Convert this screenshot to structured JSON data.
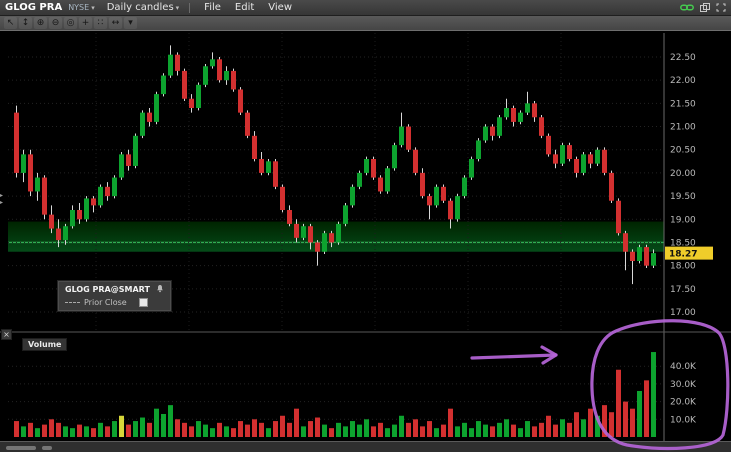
{
  "header": {
    "symbol": "GLOG PRA",
    "exchange": "NYSE",
    "period": "Daily candles",
    "menus": [
      "File",
      "Edit",
      "View"
    ],
    "window_icons": [
      "link-icon",
      "popout-icon",
      "expand-icon"
    ]
  },
  "toolbar": {
    "tools": [
      {
        "name": "cursor-tool-icon",
        "glyph": "↖"
      },
      {
        "name": "pan-tool-icon",
        "glyph": "↕"
      },
      {
        "name": "zoom-in-icon",
        "glyph": "⊕"
      },
      {
        "name": "zoom-out-icon",
        "glyph": "⊖"
      },
      {
        "name": "target-icon",
        "glyph": "◎"
      },
      {
        "name": "crosshair-icon",
        "glyph": "+"
      },
      {
        "name": "grid-dots-icon",
        "glyph": "∷"
      },
      {
        "name": "measure-icon",
        "glyph": "↔"
      },
      {
        "name": "tools-dropdown-icon",
        "glyph": "▾"
      }
    ]
  },
  "legend": {
    "title": "GLOG PRA@SMART",
    "prior_close_label": "Prior Close"
  },
  "volume_pane": {
    "label": "Volume"
  },
  "price_axis": {
    "last_price": "18.27"
  },
  "chart_data": {
    "type": "candlestick",
    "title": "GLOG PRA@SMART Daily candles",
    "price_ticks": [
      17.0,
      17.5,
      18.0,
      18.5,
      19.0,
      19.5,
      20.0,
      20.5,
      21.0,
      21.5,
      22.0,
      22.5
    ],
    "price_tick_labels": [
      "17.00",
      "17.50",
      "18.00",
      "18.50",
      "19.00",
      "19.50",
      "20.00",
      "20.50",
      "21.00",
      "21.50",
      "22.00",
      "22.50"
    ],
    "ylim": [
      16.8,
      23.0
    ],
    "volume_ticks": [
      10000,
      20000,
      30000,
      40000
    ],
    "volume_tick_labels": [
      "10.0K",
      "20.0K",
      "30.0K",
      "40.0K"
    ],
    "volume_ylim": [
      0,
      52000
    ],
    "last_price": 18.27,
    "highlight_band": {
      "from": 18.3,
      "to": 18.95,
      "line": 18.5
    },
    "volume_highlight_index": 15,
    "colors": {
      "up": "#0da32f",
      "down": "#d33030",
      "wick": "#d8d8d8",
      "band_line": "#3fd36a",
      "volume_highlight": "#d6d63a",
      "annotation": "#b565d8",
      "last_price_bg": "#f0cd2a"
    },
    "candles": [
      [
        21.3,
        21.45,
        19.9,
        20.0
      ],
      [
        20.0,
        20.5,
        19.8,
        20.4
      ],
      [
        20.4,
        20.5,
        19.5,
        19.6
      ],
      [
        19.6,
        20.0,
        19.4,
        19.9
      ],
      [
        19.9,
        19.95,
        19.0,
        19.1
      ],
      [
        19.1,
        19.3,
        18.7,
        18.8
      ],
      [
        18.8,
        19.0,
        18.4,
        18.55
      ],
      [
        18.55,
        18.9,
        18.45,
        18.85
      ],
      [
        18.85,
        19.3,
        18.8,
        19.2
      ],
      [
        19.2,
        19.35,
        18.9,
        19.0
      ],
      [
        19.0,
        19.5,
        18.95,
        19.45
      ],
      [
        19.45,
        19.5,
        19.15,
        19.3
      ],
      [
        19.3,
        19.75,
        19.25,
        19.7
      ],
      [
        19.7,
        19.8,
        19.4,
        19.5
      ],
      [
        19.5,
        19.95,
        19.45,
        19.9
      ],
      [
        19.9,
        20.45,
        19.85,
        20.4
      ],
      [
        20.4,
        20.5,
        20.05,
        20.15
      ],
      [
        20.15,
        20.85,
        20.1,
        20.8
      ],
      [
        20.8,
        21.35,
        20.75,
        21.3
      ],
      [
        21.3,
        21.4,
        21.0,
        21.1
      ],
      [
        21.1,
        21.75,
        21.05,
        21.7
      ],
      [
        21.7,
        22.15,
        21.65,
        22.1
      ],
      [
        22.1,
        22.75,
        22.05,
        22.55
      ],
      [
        22.55,
        22.6,
        22.1,
        22.2
      ],
      [
        22.2,
        22.25,
        21.55,
        21.6
      ],
      [
        21.6,
        21.7,
        21.3,
        21.4
      ],
      [
        21.4,
        21.95,
        21.35,
        21.9
      ],
      [
        21.9,
        22.35,
        21.85,
        22.3
      ],
      [
        22.3,
        22.6,
        22.25,
        22.45
      ],
      [
        22.45,
        22.5,
        21.95,
        22.0
      ],
      [
        22.0,
        22.3,
        21.9,
        22.2
      ],
      [
        22.2,
        22.25,
        21.75,
        21.8
      ],
      [
        21.8,
        21.85,
        21.25,
        21.3
      ],
      [
        21.3,
        21.35,
        20.75,
        20.8
      ],
      [
        20.8,
        20.9,
        20.25,
        20.3
      ],
      [
        20.3,
        20.45,
        19.95,
        20.0
      ],
      [
        20.0,
        20.3,
        19.95,
        20.25
      ],
      [
        20.25,
        20.3,
        19.65,
        19.7
      ],
      [
        19.7,
        19.75,
        19.15,
        19.2
      ],
      [
        19.2,
        19.3,
        18.85,
        18.9
      ],
      [
        18.9,
        19.0,
        18.5,
        18.6
      ],
      [
        18.6,
        18.9,
        18.55,
        18.85
      ],
      [
        18.85,
        18.9,
        18.35,
        18.5
      ],
      [
        18.5,
        18.55,
        18.0,
        18.3
      ],
      [
        18.3,
        18.75,
        18.25,
        18.7
      ],
      [
        18.7,
        18.75,
        18.4,
        18.5
      ],
      [
        18.5,
        18.95,
        18.45,
        18.9
      ],
      [
        18.9,
        19.35,
        18.85,
        19.3
      ],
      [
        19.3,
        19.75,
        19.25,
        19.7
      ],
      [
        19.7,
        20.05,
        19.65,
        20.0
      ],
      [
        20.0,
        20.35,
        19.95,
        20.3
      ],
      [
        20.3,
        20.35,
        19.85,
        19.9
      ],
      [
        19.9,
        19.95,
        19.55,
        19.6
      ],
      [
        19.6,
        20.15,
        19.55,
        20.1
      ],
      [
        20.1,
        20.65,
        20.05,
        20.6
      ],
      [
        20.6,
        21.3,
        20.55,
        21.0
      ],
      [
        21.0,
        21.05,
        20.45,
        20.5
      ],
      [
        20.5,
        20.55,
        19.95,
        20.0
      ],
      [
        20.0,
        20.1,
        19.45,
        19.5
      ],
      [
        19.5,
        19.55,
        19.0,
        19.3
      ],
      [
        19.3,
        19.75,
        19.25,
        19.7
      ],
      [
        19.7,
        19.75,
        19.35,
        19.4
      ],
      [
        19.4,
        19.45,
        18.8,
        19.0
      ],
      [
        19.0,
        19.55,
        18.95,
        19.5
      ],
      [
        19.5,
        19.95,
        19.45,
        19.9
      ],
      [
        19.9,
        20.35,
        19.85,
        20.3
      ],
      [
        20.3,
        20.75,
        20.25,
        20.7
      ],
      [
        20.7,
        21.05,
        20.65,
        21.0
      ],
      [
        21.0,
        21.05,
        20.7,
        20.8
      ],
      [
        20.8,
        21.25,
        20.75,
        21.2
      ],
      [
        21.2,
        21.6,
        21.15,
        21.4
      ],
      [
        21.4,
        21.45,
        21.0,
        21.1
      ],
      [
        21.1,
        21.35,
        21.05,
        21.3
      ],
      [
        21.3,
        21.75,
        21.25,
        21.5
      ],
      [
        21.5,
        21.55,
        21.1,
        21.2
      ],
      [
        21.2,
        21.25,
        20.75,
        20.8
      ],
      [
        20.8,
        20.85,
        20.35,
        20.4
      ],
      [
        20.4,
        20.5,
        20.1,
        20.2
      ],
      [
        20.2,
        20.65,
        20.15,
        20.6
      ],
      [
        20.6,
        20.65,
        20.25,
        20.3
      ],
      [
        20.3,
        20.35,
        19.9,
        20.0
      ],
      [
        20.0,
        20.45,
        19.95,
        20.4
      ],
      [
        20.4,
        20.45,
        20.1,
        20.2
      ],
      [
        20.2,
        20.55,
        20.15,
        20.5
      ],
      [
        20.5,
        20.55,
        19.95,
        20.0
      ],
      [
        20.0,
        20.05,
        19.35,
        19.4
      ],
      [
        19.4,
        19.45,
        18.65,
        18.7
      ],
      [
        18.7,
        18.75,
        17.9,
        18.3
      ],
      [
        18.3,
        18.35,
        17.6,
        18.1
      ],
      [
        18.1,
        18.45,
        18.05,
        18.4
      ],
      [
        18.4,
        18.45,
        17.95,
        18.0
      ],
      [
        18.0,
        18.35,
        17.95,
        18.27
      ]
    ],
    "volumes": [
      9000,
      6000,
      8000,
      5000,
      7000,
      10000,
      8000,
      6000,
      5000,
      7000,
      6000,
      5000,
      8000,
      6000,
      9000,
      12000,
      7000,
      9000,
      11000,
      8000,
      16000,
      13000,
      18000,
      10000,
      8000,
      6000,
      9000,
      7000,
      5000,
      8000,
      6000,
      5000,
      9000,
      7000,
      10000,
      8000,
      5000,
      9000,
      12000,
      8000,
      16000,
      6000,
      9000,
      11000,
      7000,
      5000,
      8000,
      6000,
      9000,
      7000,
      10000,
      6000,
      8000,
      5000,
      7000,
      12000,
      8000,
      10000,
      6000,
      9000,
      5000,
      7000,
      16000,
      6000,
      8000,
      5000,
      9000,
      7000,
      6000,
      8000,
      10000,
      7000,
      5000,
      9000,
      6000,
      8000,
      12000,
      7000,
      10000,
      8000,
      14000,
      10000,
      16000,
      12000,
      18000,
      14000,
      38000,
      20000,
      16000,
      26000,
      32000,
      48000
    ]
  }
}
